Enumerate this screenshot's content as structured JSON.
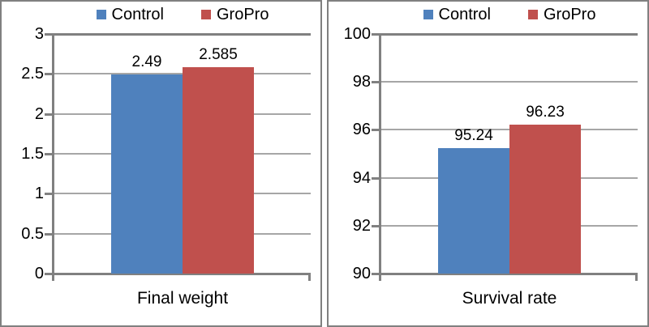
{
  "style": {
    "control_color": "#4F81BD",
    "gropro_color": "#C0504D",
    "axis_color": "#808080",
    "gridline_color": "#A6A6A6",
    "text_color": "#000000",
    "panel_border_color": "#808080",
    "background": "#FFFFFF"
  },
  "chart_data": [
    {
      "type": "bar",
      "title": "",
      "categories": [
        "Final weight"
      ],
      "series": [
        {
          "name": "Control",
          "values": [
            2.49
          ],
          "labels": [
            "2.49"
          ],
          "color": "#4F81BD"
        },
        {
          "name": "GroPro",
          "values": [
            2.585
          ],
          "labels": [
            "2.585"
          ],
          "color": "#C0504D"
        }
      ],
      "xlabel": "Final weight",
      "ylabel": "",
      "ylim": [
        0,
        3
      ],
      "yticks": [
        0,
        0.5,
        1,
        1.5,
        2,
        2.5,
        3
      ],
      "ytick_labels": [
        "0",
        "0.5",
        "1",
        "1.5",
        "2",
        "2.5",
        "3"
      ],
      "grid": true,
      "legend_position": "top",
      "data_labels_shown": true
    },
    {
      "type": "bar",
      "title": "",
      "categories": [
        "Survival rate"
      ],
      "series": [
        {
          "name": "Control",
          "values": [
            95.24
          ],
          "labels": [
            "95.24"
          ],
          "color": "#4F81BD"
        },
        {
          "name": "GroPro",
          "values": [
            96.23
          ],
          "labels": [
            "96.23"
          ],
          "color": "#C0504D"
        }
      ],
      "xlabel": "Survival rate",
      "ylabel": "",
      "ylim": [
        90,
        100
      ],
      "yticks": [
        90,
        92,
        94,
        96,
        98,
        100
      ],
      "ytick_labels": [
        "90",
        "92",
        "94",
        "96",
        "98",
        "100"
      ],
      "grid": true,
      "legend_position": "top",
      "data_labels_shown": true
    }
  ]
}
